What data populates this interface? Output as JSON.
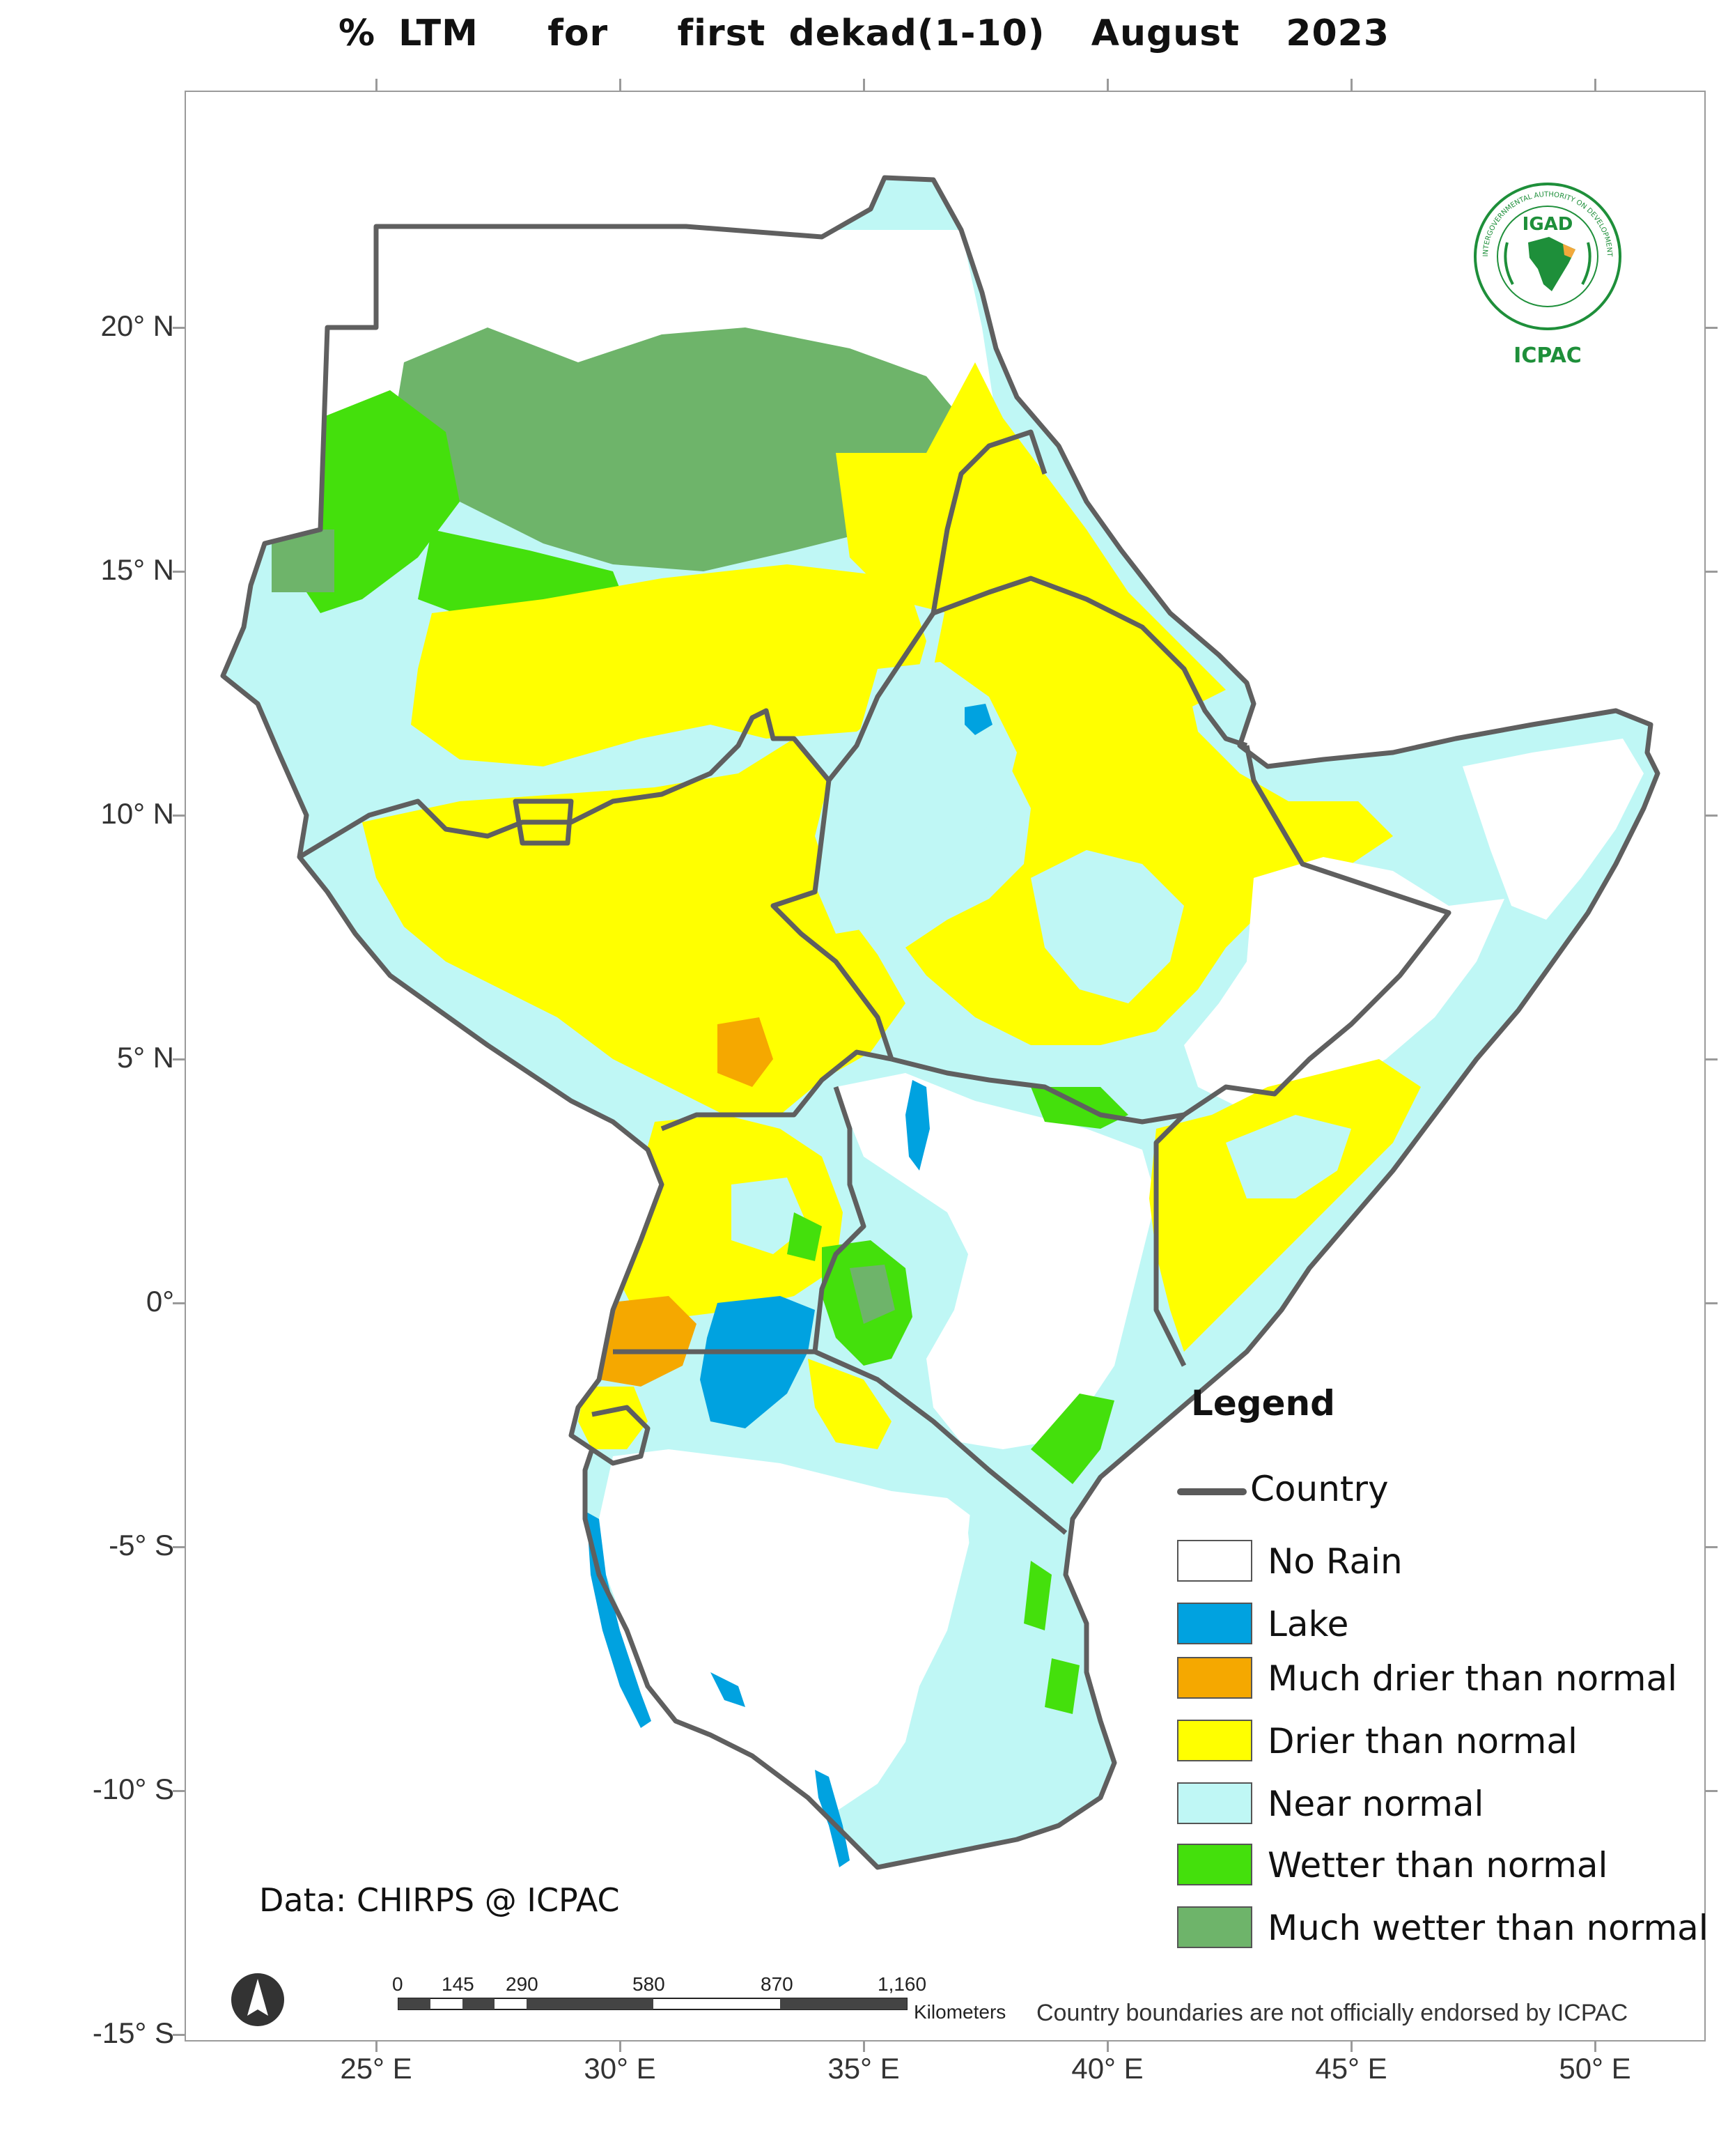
{
  "title": "% LTM   for   first dekad(1-10)  August  2023",
  "axes": {
    "lat_labels": [
      "20° N",
      "15° N",
      "10° N",
      "5° N",
      "0°",
      "-5° S",
      "-10° S",
      "-15° S"
    ],
    "lon_labels": [
      "25° E",
      "30° E",
      "35° E",
      "40° E",
      "45° E",
      "50° E"
    ]
  },
  "legend": {
    "title": "Legend",
    "country_label": "Country",
    "items": [
      {
        "label": "No Rain",
        "color": "#ffffff"
      },
      {
        "label": "Lake",
        "color": "#00a2e0"
      },
      {
        "label": "Much drier than normal",
        "color": "#f5a800"
      },
      {
        "label": "Drier than normal",
        "color": "#ffff00"
      },
      {
        "label": "Near normal",
        "color": "#bff7f5"
      },
      {
        "label": "Wetter than normal",
        "color": "#44e00c"
      },
      {
        "label": "Much wetter than normal",
        "color": "#6eb46a"
      }
    ]
  },
  "data_source": "Data: CHIRPS @ ICPAC",
  "scale_bar": {
    "ticks": [
      "0",
      "145",
      "290",
      "580",
      "870",
      "1,160"
    ],
    "unit": "Kilometers"
  },
  "disclaimer": "Country boundaries are not officially endorsed by ICPAC",
  "logo": {
    "name": "IGAD",
    "subname": "ICPAC",
    "ring_text": "INTERGOVERNMENTAL AUTHORITY ON DEVELOPMENT"
  },
  "colors": {
    "border": "#5f5f5f",
    "frame": "#9a9a9a",
    "logo_green": "#1e8f3a",
    "logo_gold": "#f2a93b"
  }
}
